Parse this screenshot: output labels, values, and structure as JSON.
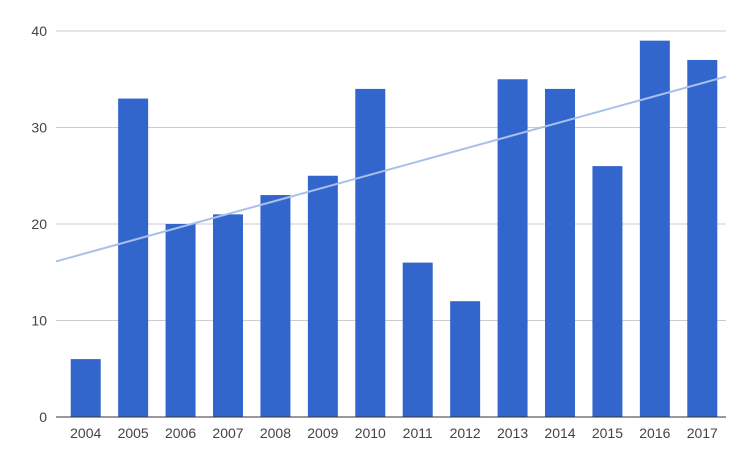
{
  "chart_data": {
    "type": "bar",
    "title": "",
    "xlabel": "",
    "ylabel": "",
    "categories": [
      "2004",
      "2005",
      "2006",
      "2007",
      "2008",
      "2009",
      "2010",
      "2011",
      "2012",
      "2013",
      "2014",
      "2015",
      "2016",
      "2017"
    ],
    "values": [
      6,
      33,
      20,
      21,
      23,
      25,
      34,
      16,
      12,
      35,
      34,
      26,
      39,
      37
    ],
    "ylim": [
      0,
      40
    ],
    "yticks": [
      0,
      10,
      20,
      30,
      40
    ],
    "grid": true,
    "legend": "none",
    "bar_color": "#3366cc",
    "trendline": {
      "type": "linear",
      "color": "#a8c0ea"
    }
  }
}
